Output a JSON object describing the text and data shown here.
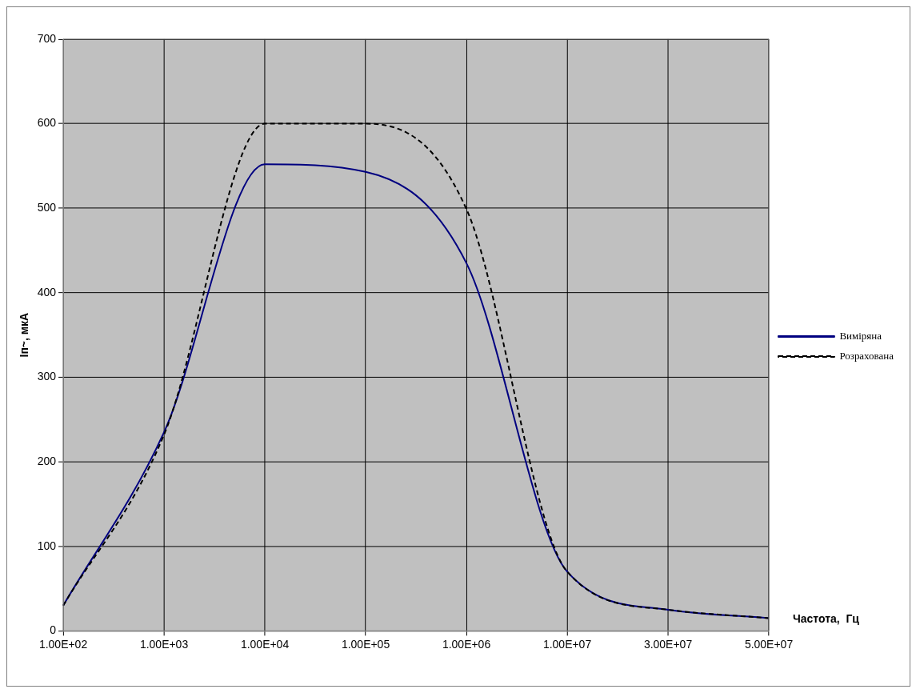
{
  "chart_data": {
    "type": "line",
    "xlabel": "Частота,  Гц",
    "ylabel": "Iп~, мкА",
    "categories": [
      "1.00E+02",
      "1.00E+03",
      "1.00E+04",
      "1.00E+05",
      "1.00E+06",
      "1.00E+07",
      "3.00E+07",
      "5.00E+07"
    ],
    "series": [
      {
        "name": "Виміряна",
        "color": "#000080",
        "line_style": "solid",
        "values": [
          30,
          235,
          552,
          543,
          435,
          70,
          25,
          15
        ]
      },
      {
        "name": "Розрахована",
        "color": "#000000",
        "line_style": "dashed",
        "values": [
          30,
          232,
          600,
          600,
          499,
          70,
          25,
          15
        ]
      }
    ],
    "ylim": [
      0,
      700
    ],
    "yticks": [
      0,
      100,
      200,
      300,
      400,
      500,
      600,
      700
    ],
    "grid": true,
    "legend": "right",
    "marker": "none"
  }
}
